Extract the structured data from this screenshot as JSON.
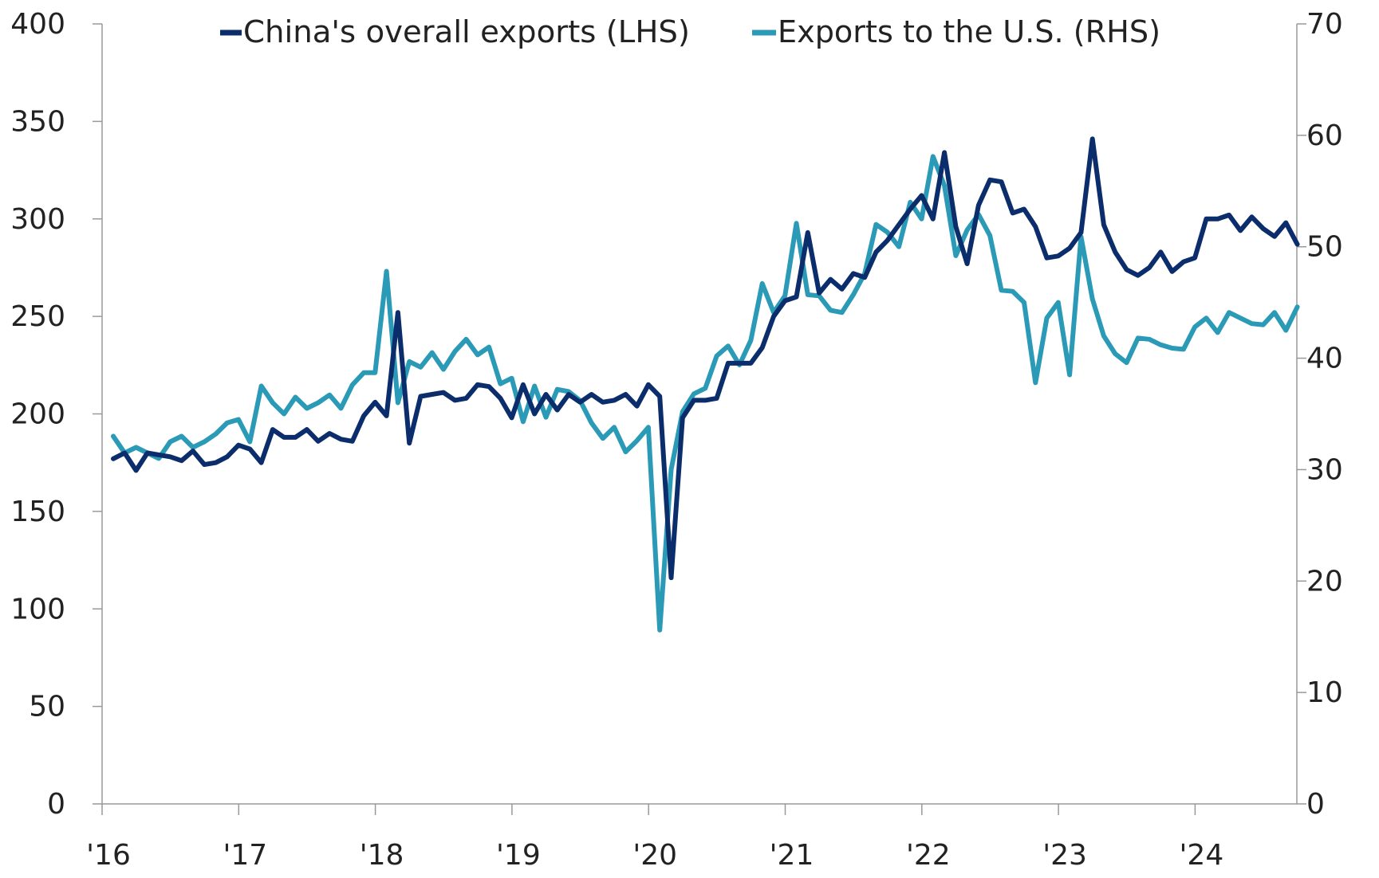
{
  "chart_data": {
    "type": "line",
    "title": "",
    "xlabel": "",
    "ylabel": "",
    "x_start": "2016-01",
    "x_end": "2024-09",
    "x_tick_labels": [
      "'16",
      "'17",
      "'18",
      "'19",
      "'20",
      "'21",
      "'22",
      "'23",
      "'24"
    ],
    "y_left": {
      "lim": [
        0,
        400
      ],
      "ticks": [
        0,
        50,
        100,
        150,
        200,
        250,
        300,
        350,
        400
      ]
    },
    "y_right": {
      "lim": [
        0,
        70
      ],
      "ticks": [
        0,
        10,
        20,
        30,
        40,
        50,
        60,
        70
      ]
    },
    "grid": false,
    "legend_position": "top-center",
    "series": [
      {
        "name": "China's overall exports (LHS)",
        "axis": "left",
        "color": "#0b2d6b",
        "values": [
          177,
          180,
          171,
          180,
          179,
          178,
          176,
          181,
          174,
          175,
          178,
          184,
          182,
          175,
          192,
          188,
          188,
          192,
          186,
          190,
          187,
          186,
          199,
          206,
          199,
          252,
          185,
          209,
          210,
          211,
          207,
          208,
          215,
          214,
          208,
          198,
          215,
          200,
          210,
          202,
          210,
          206,
          210,
          206,
          207,
          210,
          204,
          215,
          209,
          116,
          198,
          207,
          207,
          208,
          226,
          226,
          226,
          234,
          250,
          258,
          260,
          293,
          262,
          269,
          264,
          272,
          270,
          283,
          289,
          297,
          305,
          312,
          300,
          334,
          296,
          277,
          307,
          320,
          319,
          303,
          305,
          296,
          280,
          281,
          285,
          293,
          341,
          297,
          283,
          274,
          271,
          275,
          283,
          273,
          278,
          280,
          300,
          300,
          302,
          294,
          301,
          295,
          291,
          298,
          287
        ]
      },
      {
        "name": "Exports to the U.S. (RHS)",
        "axis": "right",
        "color": "#2b9ab7",
        "values": [
          33,
          31.5,
          32,
          31.5,
          31,
          32.5,
          33,
          32,
          32.5,
          33.2,
          34.2,
          34.5,
          32.5,
          37.5,
          36,
          35,
          36.5,
          35.5,
          36,
          36.7,
          35.5,
          37.6,
          38.7,
          38.7,
          47.8,
          36,
          39.7,
          39.2,
          40.5,
          39,
          40.6,
          41.7,
          40.3,
          41,
          37.7,
          38.2,
          34.3,
          37.5,
          34.7,
          37.2,
          37,
          36.2,
          34.2,
          32.8,
          33.8,
          31.6,
          32.6,
          33.8,
          15.6,
          30,
          35.2,
          36.8,
          37.3,
          40.2,
          41.1,
          39.4,
          41.6,
          46.7,
          44.1,
          45.6,
          52.1,
          45.7,
          45.6,
          44.3,
          44.1,
          45.7,
          47.6,
          52,
          51.3,
          50,
          54,
          52.5,
          58.1,
          55.5,
          49.2,
          51.5,
          52.9,
          51,
          46.1,
          46,
          45,
          37.8,
          43.6,
          45,
          38.5,
          50.9,
          45.3,
          42,
          40.4,
          39.6,
          41.8,
          41.7,
          41.2,
          40.9,
          40.8,
          42.8,
          43.6,
          42.3,
          44.1,
          43.6,
          43.1,
          43,
          44.1,
          42.5,
          44.6
        ]
      }
    ]
  }
}
